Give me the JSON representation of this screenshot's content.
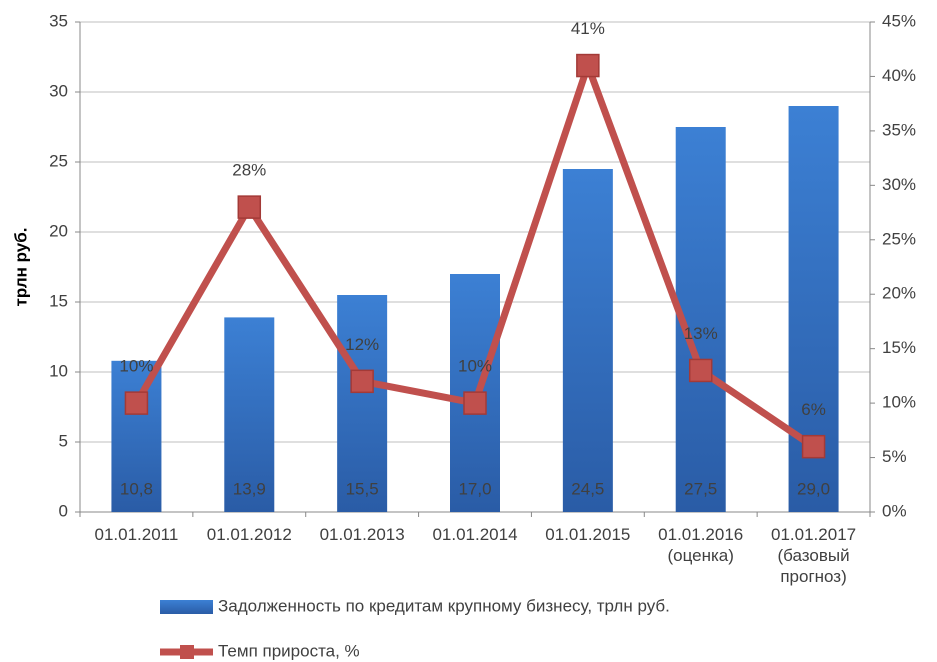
{
  "chart_data": {
    "type": "bar",
    "ylabel": "трлн руб.",
    "categories": [
      "01.01.2011",
      "01.01.2012",
      "01.01.2013",
      "01.01.2014",
      "01.01.2015",
      "01.01.2016\n(оценка)",
      "01.01.2017\n(базовый\nпрогноз)"
    ],
    "series": [
      {
        "name": "Задолженность по кредитам крупному бизнесу, трлн руб.",
        "type": "bar",
        "color": "#3a7dd0",
        "values": [
          10.8,
          13.9,
          15.5,
          17.0,
          24.5,
          27.5,
          29.0
        ],
        "value_labels": [
          "10,8",
          "13,9",
          "15,5",
          "17,0",
          "24,5",
          "27,5",
          "29,0"
        ]
      },
      {
        "name": "Темп прироста, %",
        "type": "line",
        "axis": "y2",
        "color": "#c0504d",
        "values": [
          10,
          28,
          12,
          10,
          41,
          13,
          6
        ],
        "value_labels": [
          "10%",
          "28%",
          "12%",
          "10%",
          "41%",
          "13%",
          "6%"
        ]
      }
    ],
    "ylim": [
      0,
      35
    ],
    "yticks": [
      0,
      5,
      10,
      15,
      20,
      25,
      30,
      35
    ],
    "y2lim": [
      0,
      45
    ],
    "y2ticks": [
      {
        "value": 0,
        "label": "0%"
      },
      {
        "value": 5,
        "label": "5%"
      },
      {
        "value": 10,
        "label": "10%"
      },
      {
        "value": 15,
        "label": "15%"
      },
      {
        "value": 20,
        "label": "20%"
      },
      {
        "value": 25,
        "label": "25%"
      },
      {
        "value": 30,
        "label": "30%"
      },
      {
        "value": 35,
        "label": "35%"
      },
      {
        "value": 40,
        "label": "40%"
      },
      {
        "value": 45,
        "label": "45%"
      }
    ],
    "grid": true
  }
}
